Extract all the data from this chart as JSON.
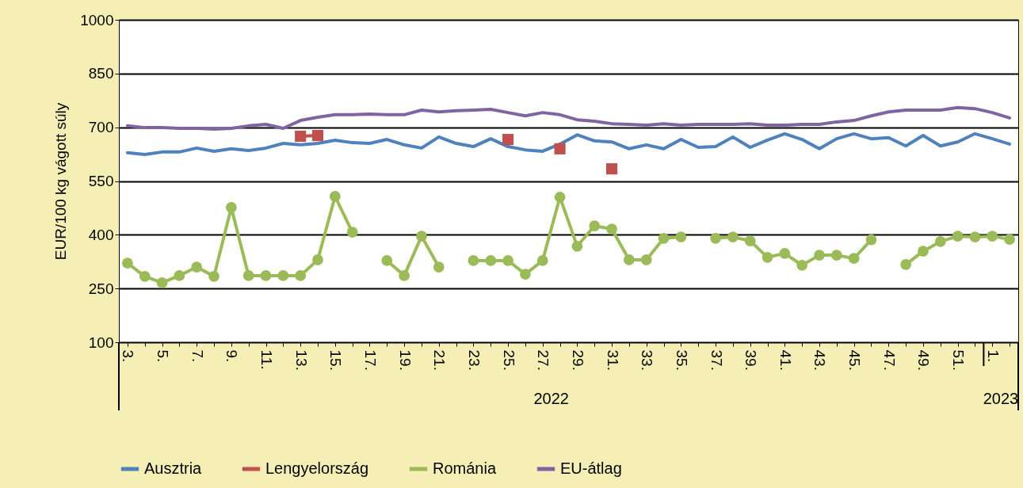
{
  "chart_data": {
    "type": "line",
    "ylabel": "EUR/100 kg vágott súly",
    "categories": [
      "3.",
      null,
      "5.",
      null,
      "7.",
      null,
      "9.",
      null,
      "11.",
      null,
      "13.",
      null,
      "15.",
      null,
      "17.",
      null,
      "19.",
      null,
      "21.",
      null,
      "23.",
      null,
      "25.",
      null,
      "27.",
      null,
      "29.",
      null,
      "31.",
      null,
      "33.",
      null,
      "35.",
      null,
      "37.",
      null,
      "39.",
      null,
      "41.",
      null,
      "43.",
      null,
      "45.",
      null,
      "47.",
      null,
      "49.",
      null,
      "51.",
      null,
      "1.",
      null
    ],
    "series": [
      {
        "name": "Ausztria",
        "color": "#4f81bd",
        "marker": "none",
        "values": [
          629,
          624,
          631,
          631,
          642,
          633,
          640,
          635,
          642,
          655,
          651,
          655,
          664,
          657,
          655,
          666,
          651,
          642,
          673,
          655,
          646,
          668,
          646,
          637,
          633,
          653,
          679,
          662,
          659,
          640,
          651,
          640,
          666,
          644,
          646,
          673,
          644,
          664,
          682,
          666,
          640,
          668,
          682,
          668,
          671,
          648,
          677,
          648,
          659,
          682,
          668,
          653
        ]
      },
      {
        "name": "Lengyelország",
        "color": "#c0504d",
        "marker": "square",
        "values": [
          null,
          null,
          null,
          null,
          null,
          null,
          null,
          null,
          null,
          null,
          675,
          677,
          null,
          null,
          null,
          null,
          null,
          null,
          null,
          null,
          null,
          null,
          666,
          null,
          null,
          640,
          null,
          null,
          584,
          null,
          null,
          null,
          null,
          null,
          null,
          null,
          null,
          null,
          null,
          null,
          null,
          null,
          null,
          null,
          null,
          null,
          null,
          null,
          null,
          null,
          null,
          null
        ]
      },
      {
        "name": "Románia",
        "color": "#9bbb59",
        "marker": "circle",
        "values": [
          321,
          284,
          266,
          286,
          310,
          284,
          476,
          286,
          286,
          286,
          286,
          330,
          507,
          407,
          null,
          328,
          286,
          396,
          310,
          null,
          328,
          328,
          328,
          290,
          328,
          505,
          368,
          425,
          416,
          330,
          330,
          390,
          394,
          null,
          390,
          394,
          383,
          337,
          348,
          315,
          343,
          343,
          334,
          386,
          null,
          317,
          354,
          381,
          396,
          394,
          396,
          387
        ]
      },
      {
        "name": "EU-átlag",
        "color": "#8064a2",
        "marker": "none",
        "values": [
          704,
          699,
          699,
          697,
          697,
          695,
          697,
          704,
          708,
          697,
          719,
          728,
          735,
          735,
          737,
          735,
          735,
          748,
          743,
          746,
          748,
          750,
          741,
          732,
          741,
          735,
          721,
          717,
          710,
          708,
          706,
          710,
          706,
          708,
          708,
          708,
          710,
          706,
          706,
          708,
          708,
          715,
          719,
          732,
          743,
          748,
          748,
          748,
          755,
          752,
          741,
          726
        ]
      }
    ],
    "ylim": [
      100,
      1000
    ],
    "yticks": [
      100,
      250,
      400,
      550,
      700,
      850,
      1000
    ],
    "grid": "y",
    "legend": "bottom",
    "annotations": [
      "2022",
      "2023"
    ]
  }
}
